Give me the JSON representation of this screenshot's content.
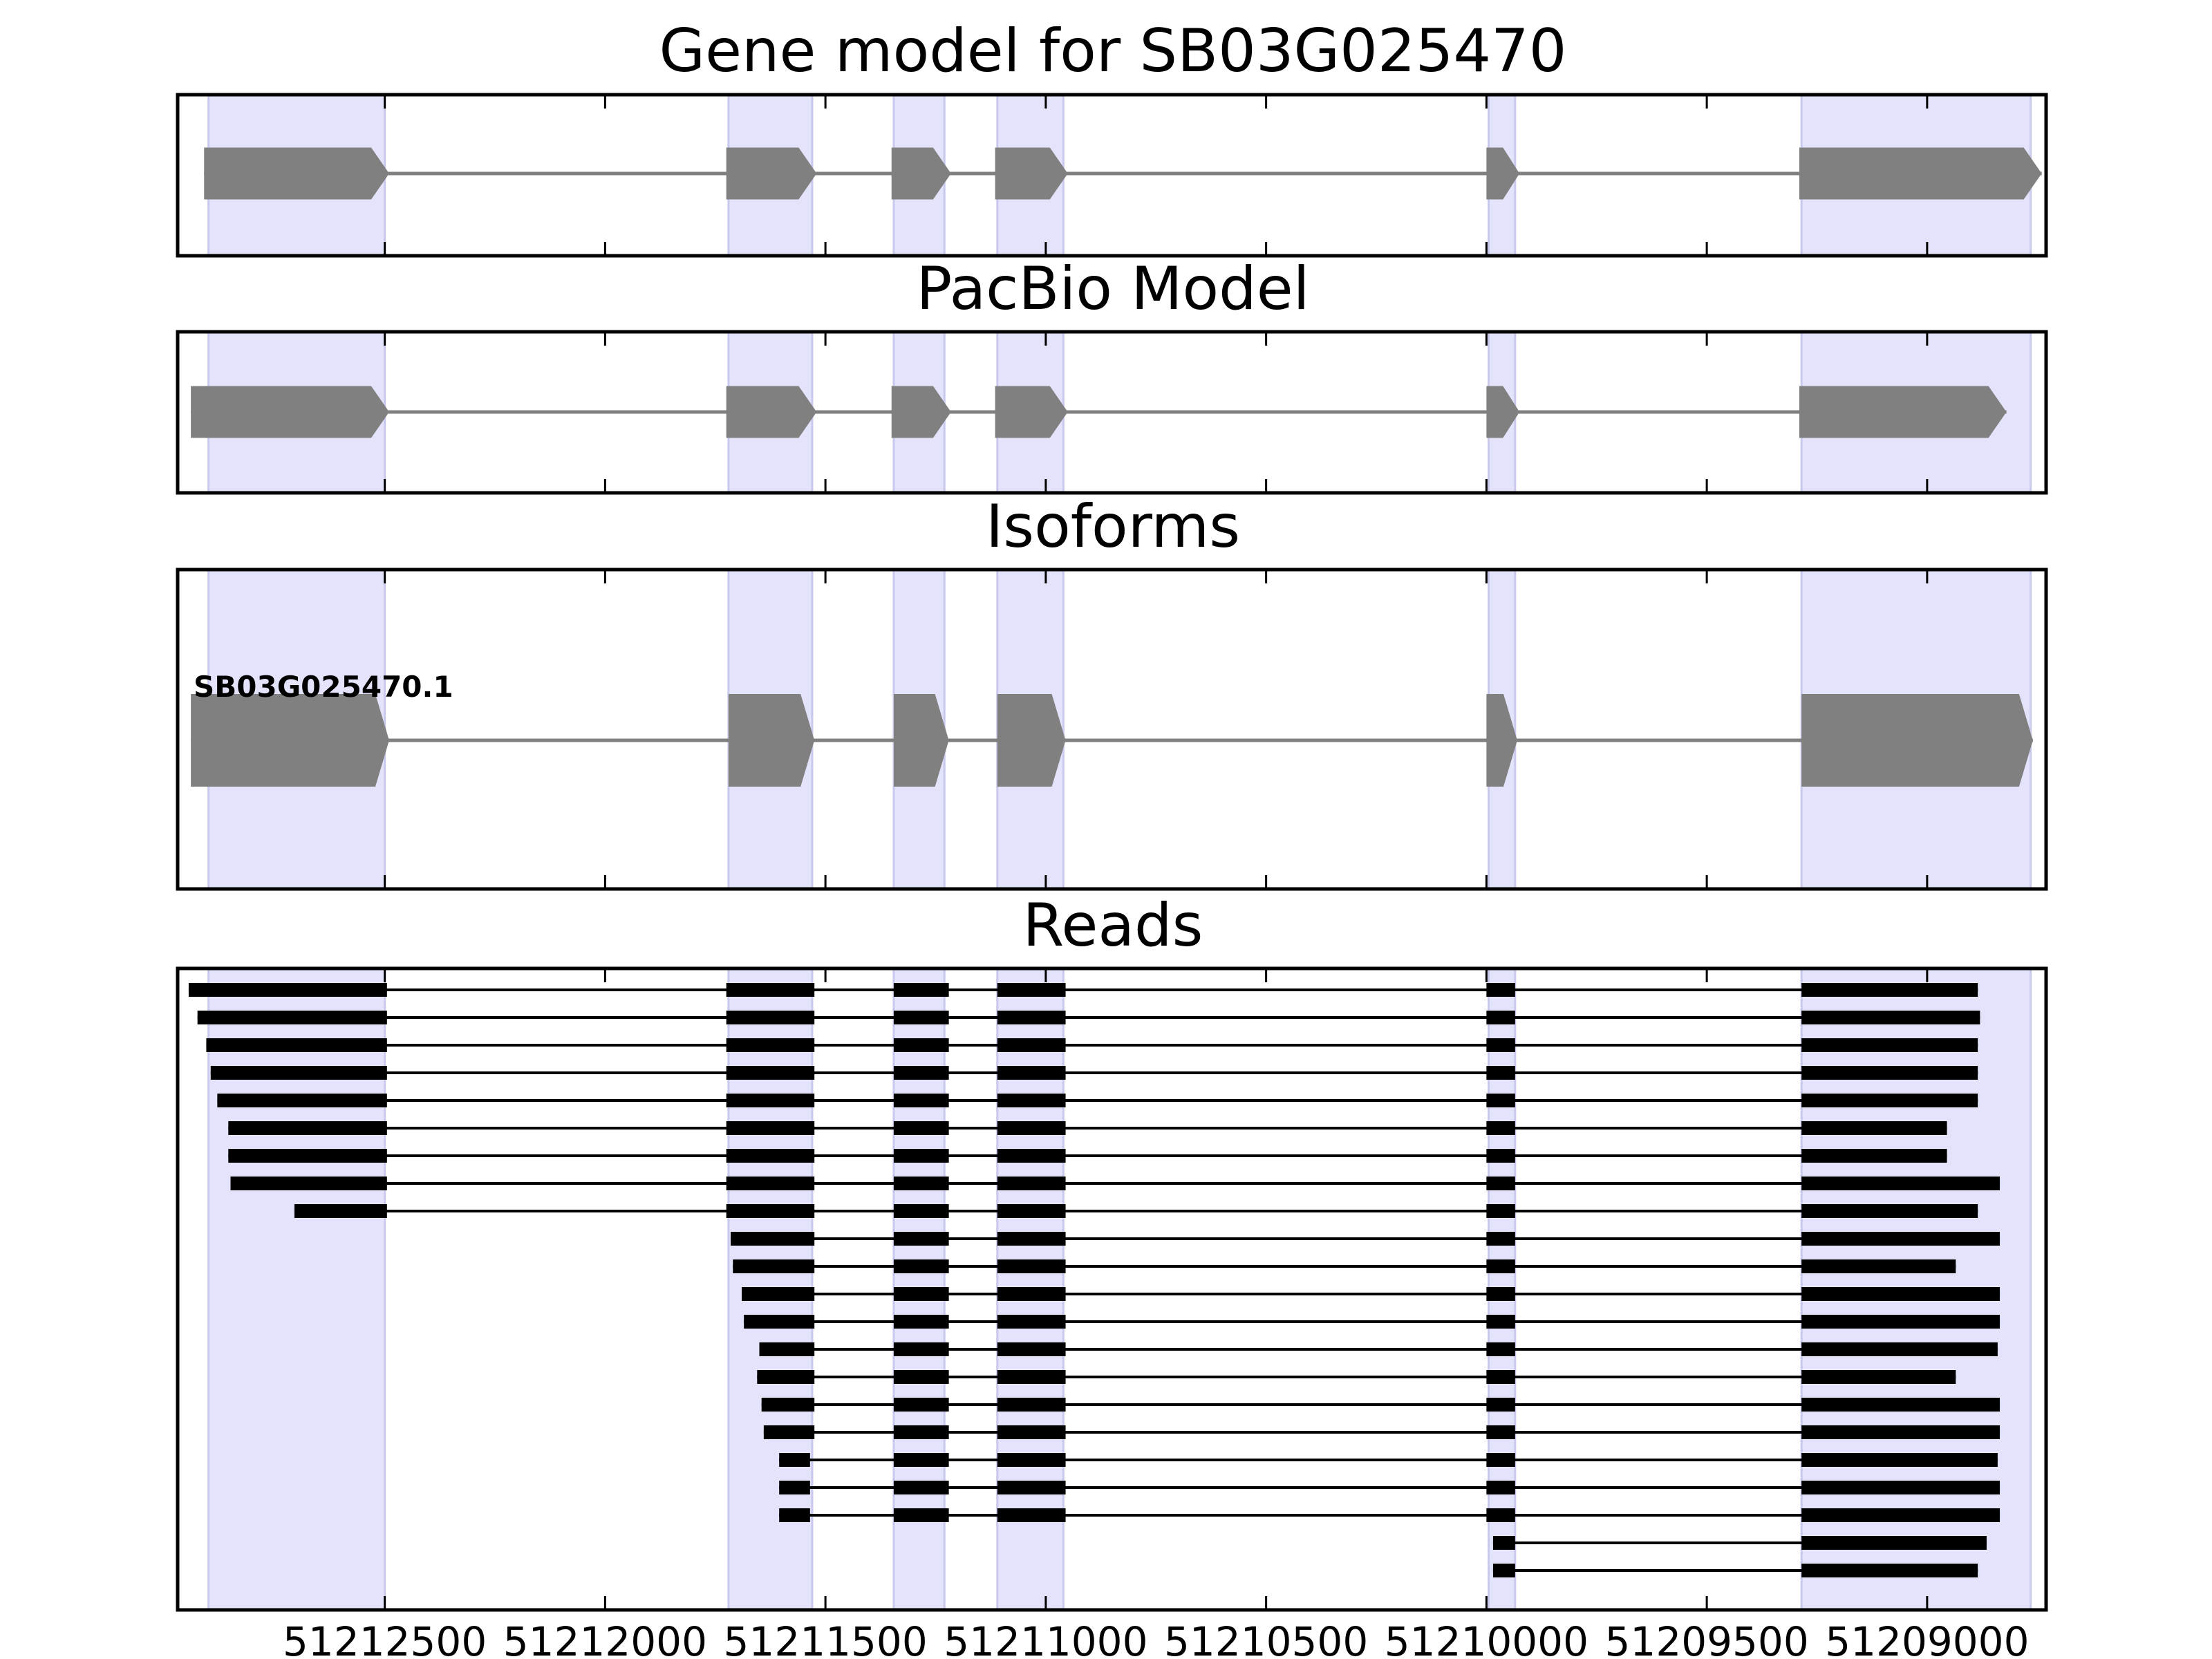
{
  "colors": {
    "highlight": "#e3e3fb",
    "highlight_edge": "#c9c9ee",
    "model_fill": "#808080",
    "read_fill": "#000000",
    "frame": "#000000"
  },
  "chart_data": {
    "type": "diagram",
    "x_axis": {
      "reversed": true,
      "range": [
        51212970,
        51208730
      ],
      "ticks": [
        51212500,
        51212000,
        51211500,
        51211000,
        51210500,
        51210000,
        51209500,
        51209000
      ],
      "tick_labels": [
        "51212500",
        "51212000",
        "51211500",
        "51211000",
        "51210500",
        "51210000",
        "51209500",
        "51209000"
      ]
    },
    "highlight_regions": [
      [
        51212900,
        51212500
      ],
      [
        51211720,
        51211530
      ],
      [
        51211345,
        51211230
      ],
      [
        51211110,
        51210960
      ],
      [
        51209995,
        51209935
      ],
      [
        51209285,
        51208765
      ]
    ],
    "panels": [
      {
        "id": "gene-model",
        "title": "Gene model for SB03G025470",
        "style": "model",
        "features": [
          {
            "label": "",
            "exons": [
              [
                51212910,
                51212490
              ],
              [
                51211725,
                51211520
              ],
              [
                51211350,
                51211215
              ],
              [
                51211115,
                51210950
              ],
              [
                51210000,
                51209925
              ],
              [
                51209290,
                51208740
              ]
            ]
          }
        ]
      },
      {
        "id": "pacbio-model",
        "title": "PacBio Model",
        "style": "model",
        "features": [
          {
            "label": "",
            "exons": [
              [
                51212940,
                51212490
              ],
              [
                51211725,
                51211520
              ],
              [
                51211350,
                51211215
              ],
              [
                51211115,
                51210950
              ],
              [
                51210000,
                51209925
              ],
              [
                51209290,
                51208820
              ]
            ]
          }
        ]
      },
      {
        "id": "isoforms",
        "title": "Isoforms",
        "style": "isoform",
        "features": [
          {
            "label": "SB03G025470.1",
            "exons": [
              [
                51212940,
                51212490
              ],
              [
                51211720,
                51211525
              ],
              [
                51211345,
                51211220
              ],
              [
                51211110,
                51210955
              ],
              [
                51210000,
                51209930
              ],
              [
                51209285,
                51208760
              ]
            ]
          }
        ]
      },
      {
        "id": "reads",
        "title": "Reads",
        "style": "read",
        "features": [
          {
            "exons": [
              [
                51212945,
                51212495
              ],
              [
                51211725,
                51211525
              ],
              [
                51211345,
                51211220
              ],
              [
                51211110,
                51210955
              ],
              [
                51210000,
                51209935
              ],
              [
                51209285,
                51208885
              ]
            ]
          },
          {
            "exons": [
              [
                51212925,
                51212495
              ],
              [
                51211725,
                51211525
              ],
              [
                51211345,
                51211220
              ],
              [
                51211110,
                51210955
              ],
              [
                51210000,
                51209935
              ],
              [
                51209285,
                51208880
              ]
            ]
          },
          {
            "exons": [
              [
                51212905,
                51212495
              ],
              [
                51211725,
                51211525
              ],
              [
                51211345,
                51211220
              ],
              [
                51211110,
                51210955
              ],
              [
                51210000,
                51209935
              ],
              [
                51209285,
                51208885
              ]
            ]
          },
          {
            "exons": [
              [
                51212895,
                51212495
              ],
              [
                51211725,
                51211525
              ],
              [
                51211345,
                51211220
              ],
              [
                51211110,
                51210955
              ],
              [
                51210000,
                51209935
              ],
              [
                51209285,
                51208885
              ]
            ]
          },
          {
            "exons": [
              [
                51212880,
                51212495
              ],
              [
                51211725,
                51211525
              ],
              [
                51211345,
                51211220
              ],
              [
                51211110,
                51210955
              ],
              [
                51210000,
                51209935
              ],
              [
                51209285,
                51208885
              ]
            ]
          },
          {
            "exons": [
              [
                51212855,
                51212495
              ],
              [
                51211725,
                51211525
              ],
              [
                51211345,
                51211220
              ],
              [
                51211110,
                51210955
              ],
              [
                51210000,
                51209935
              ],
              [
                51209285,
                51208955
              ]
            ]
          },
          {
            "exons": [
              [
                51212855,
                51212495
              ],
              [
                51211725,
                51211525
              ],
              [
                51211345,
                51211220
              ],
              [
                51211110,
                51210955
              ],
              [
                51210000,
                51209935
              ],
              [
                51209285,
                51208955
              ]
            ]
          },
          {
            "exons": [
              [
                51212850,
                51212495
              ],
              [
                51211725,
                51211525
              ],
              [
                51211345,
                51211220
              ],
              [
                51211110,
                51210955
              ],
              [
                51210000,
                51209935
              ],
              [
                51209285,
                51208835
              ]
            ]
          },
          {
            "exons": [
              [
                51212705,
                51212495
              ],
              [
                51211725,
                51211525
              ],
              [
                51211345,
                51211220
              ],
              [
                51211110,
                51210955
              ],
              [
                51210000,
                51209935
              ],
              [
                51209285,
                51208885
              ]
            ]
          },
          {
            "exons": [
              [
                51211715,
                51211525
              ],
              [
                51211345,
                51211220
              ],
              [
                51211110,
                51210955
              ],
              [
                51210000,
                51209935
              ],
              [
                51209285,
                51208835
              ]
            ]
          },
          {
            "exons": [
              [
                51211710,
                51211525
              ],
              [
                51211345,
                51211220
              ],
              [
                51211110,
                51210955
              ],
              [
                51210000,
                51209935
              ],
              [
                51209285,
                51208935
              ]
            ]
          },
          {
            "exons": [
              [
                51211690,
                51211525
              ],
              [
                51211345,
                51211220
              ],
              [
                51211110,
                51210955
              ],
              [
                51210000,
                51209935
              ],
              [
                51209285,
                51208835
              ]
            ]
          },
          {
            "exons": [
              [
                51211685,
                51211525
              ],
              [
                51211345,
                51211220
              ],
              [
                51211110,
                51210955
              ],
              [
                51210000,
                51209935
              ],
              [
                51209285,
                51208835
              ]
            ]
          },
          {
            "exons": [
              [
                51211650,
                51211525
              ],
              [
                51211345,
                51211220
              ],
              [
                51211110,
                51210955
              ],
              [
                51210000,
                51209935
              ],
              [
                51209285,
                51208840
              ]
            ]
          },
          {
            "exons": [
              [
                51211655,
                51211525
              ],
              [
                51211345,
                51211220
              ],
              [
                51211110,
                51210955
              ],
              [
                51210000,
                51209935
              ],
              [
                51209285,
                51208935
              ]
            ]
          },
          {
            "exons": [
              [
                51211645,
                51211525
              ],
              [
                51211345,
                51211220
              ],
              [
                51211110,
                51210955
              ],
              [
                51210000,
                51209935
              ],
              [
                51209285,
                51208835
              ]
            ]
          },
          {
            "exons": [
              [
                51211640,
                51211525
              ],
              [
                51211345,
                51211220
              ],
              [
                51211110,
                51210955
              ],
              [
                51210000,
                51209935
              ],
              [
                51209285,
                51208835
              ]
            ]
          },
          {
            "exons": [
              [
                51211605,
                51211535
              ],
              [
                51211345,
                51211220
              ],
              [
                51211110,
                51210955
              ],
              [
                51210000,
                51209935
              ],
              [
                51209285,
                51208840
              ]
            ]
          },
          {
            "exons": [
              [
                51211605,
                51211535
              ],
              [
                51211345,
                51211220
              ],
              [
                51211110,
                51210955
              ],
              [
                51210000,
                51209935
              ],
              [
                51209285,
                51208835
              ]
            ]
          },
          {
            "exons": [
              [
                51211605,
                51211535
              ],
              [
                51211345,
                51211220
              ],
              [
                51211110,
                51210955
              ],
              [
                51210000,
                51209935
              ],
              [
                51209285,
                51208835
              ]
            ]
          },
          {
            "exons": [
              [
                51209985,
                51209935
              ],
              [
                51209285,
                51208865
              ]
            ]
          },
          {
            "exons": [
              [
                51209985,
                51209935
              ],
              [
                51209285,
                51208885
              ]
            ]
          }
        ]
      }
    ]
  }
}
